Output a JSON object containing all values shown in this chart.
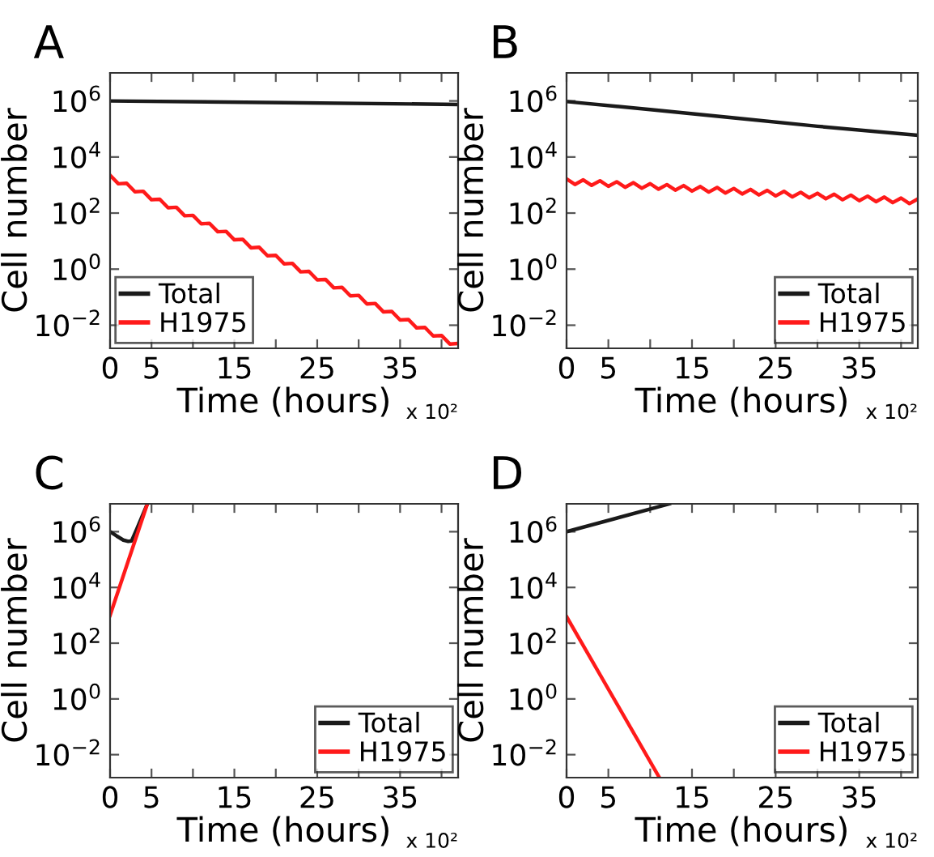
{
  "chart_data": [
    {
      "type": "line",
      "title": "A",
      "xlabel": "Time (hours)",
      "ylabel": "Cell number",
      "annotations": [
        "x 10²"
      ],
      "log": true,
      "grid": false,
      "legend": "bottom left",
      "xlim": [
        0,
        42
      ],
      "xticks": [
        0,
        5,
        {
          "value": 10,
          "label": null
        },
        15,
        {
          "value": 20,
          "label": null
        },
        25,
        {
          "value": 30,
          "label": null
        },
        35,
        {
          "value": 40,
          "label": null
        }
      ],
      "ylim": [
        0.0015,
        10000000
      ],
      "yticks": [
        {
          "value": 0.01,
          "label": "10$^{−2}$"
        },
        {
          "value": 1,
          "label": "10$^{0}$"
        },
        {
          "value": 100,
          "label": "10$^{2}$"
        },
        {
          "value": 10000,
          "label": "10$^{4}$"
        },
        {
          "value": 1000000,
          "label": "10$^{6}$"
        }
      ],
      "series": [
        {
          "name": "Total",
          "color": "#1a1a1a",
          "x": [
            0,
            21,
            42
          ],
          "values": [
            1000000,
            870000,
            750000
          ]
        },
        {
          "name": "H1975",
          "color": "#ff1a1a",
          "x": [
            0,
            1,
            2,
            3,
            4,
            5,
            6,
            7,
            8,
            9,
            10,
            11,
            12,
            13,
            14,
            15,
            16,
            17,
            18,
            19,
            20,
            21,
            22,
            23,
            24,
            25,
            26,
            27,
            28,
            29,
            30,
            31,
            32,
            33,
            34,
            35,
            36,
            37,
            38,
            39,
            40,
            41,
            42
          ],
          "values": [
            2240,
            1110,
            1160,
            577,
            600,
            299,
            311,
            155,
            161,
            80,
            83,
            41.5,
            43,
            21.5,
            22.3,
            11.1,
            11.6,
            5.77,
            6.0,
            2.99,
            3.1,
            1.55,
            1.61,
            0.8,
            0.83,
            0.414,
            0.431,
            0.215,
            0.223,
            0.111,
            0.116,
            0.0575,
            0.0598,
            0.0298,
            0.031,
            0.0154,
            0.016,
            0.008,
            0.0083,
            0.00414,
            0.0043,
            0.00214,
            0.00223
          ]
        }
      ]
    },
    {
      "type": "line",
      "title": "B",
      "xlabel": "Time (hours)",
      "ylabel": "Cell number",
      "annotations": [
        "x 10²"
      ],
      "log": true,
      "grid": false,
      "legend": "bottom right",
      "xlim": [
        0,
        42
      ],
      "xticks": [
        0,
        5,
        {
          "value": 10,
          "label": null
        },
        15,
        {
          "value": 20,
          "label": null
        },
        25,
        {
          "value": 30,
          "label": null
        },
        35,
        {
          "value": 40,
          "label": null
        }
      ],
      "ylim": [
        0.0015,
        10000000
      ],
      "yticks": [
        {
          "value": 0.01,
          "label": "10$^{−2}$"
        },
        {
          "value": 1,
          "label": "10$^{0}$"
        },
        {
          "value": 100,
          "label": "10$^{2}$"
        },
        {
          "value": 10000,
          "label": "10$^{4}$"
        },
        {
          "value": 1000000,
          "label": "10$^{6}$"
        }
      ],
      "series": [
        {
          "name": "Total",
          "color": "#1a1a1a",
          "x": [
            0,
            10,
            20,
            30,
            42
          ],
          "values": [
            950000,
            490000,
            250000,
            125000,
            60000
          ]
        },
        {
          "name": "H1975",
          "color": "#ff1a1a",
          "x": [
            0,
            1,
            2,
            3,
            4,
            5,
            6,
            7,
            8,
            9,
            10,
            11,
            12,
            13,
            14,
            15,
            16,
            17,
            18,
            19,
            20,
            21,
            22,
            23,
            24,
            25,
            26,
            27,
            28,
            29,
            30,
            31,
            32,
            33,
            34,
            35,
            36,
            37,
            38,
            39,
            40,
            41,
            42
          ],
          "values": [
            1660,
            1050,
            1530,
            975,
            1420,
            900,
            1310,
            832,
            1210,
            769,
            1120,
            711,
            1035,
            658,
            957,
            608,
            883,
            561,
            817,
            519,
            755,
            480,
            698,
            444,
            646,
            410,
            596,
            378,
            551,
            350,
            509,
            324,
            471,
            299,
            436,
            277,
            402,
            255,
            372,
            236,
            344,
            218,
            318
          ]
        }
      ]
    },
    {
      "type": "line",
      "title": "C",
      "xlabel": "Time (hours)",
      "ylabel": "Cell number",
      "annotations": [
        "x 10²"
      ],
      "log": true,
      "grid": false,
      "legend": "bottom right",
      "xlim": [
        0,
        42
      ],
      "xticks": [
        0,
        5,
        {
          "value": 10,
          "label": null
        },
        15,
        {
          "value": 20,
          "label": null
        },
        25,
        {
          "value": 30,
          "label": null
        },
        35,
        {
          "value": 40,
          "label": null
        }
      ],
      "ylim": [
        0.0015,
        10000000
      ],
      "yticks": [
        {
          "value": 0.01,
          "label": "10$^{−2}$"
        },
        {
          "value": 1,
          "label": "10$^{0}$"
        },
        {
          "value": 100,
          "label": "10$^{2}$"
        },
        {
          "value": 10000,
          "label": "10$^{4}$"
        },
        {
          "value": 1000000,
          "label": "10$^{6}$"
        }
      ],
      "series": [
        {
          "name": "Total",
          "color": "#1a1a1a",
          "x": [
            0,
            0.8,
            1.6,
            2.2,
            2.6,
            3.2,
            4.5
          ],
          "values": [
            1000000,
            700000,
            500000,
            450000,
            470000,
            1200000,
            10000000
          ]
        },
        {
          "name": "H1975",
          "color": "#ff1a1a",
          "x": [
            0,
            4.5
          ],
          "values": [
            1000,
            10000000
          ]
        }
      ]
    },
    {
      "type": "line",
      "title": "D",
      "xlabel": "Time (hours)",
      "ylabel": "Cell number",
      "annotations": [
        "x 10²"
      ],
      "log": true,
      "grid": false,
      "legend": "bottom right",
      "xlim": [
        0,
        42
      ],
      "xticks": [
        0,
        5,
        {
          "value": 10,
          "label": null
        },
        15,
        {
          "value": 20,
          "label": null
        },
        25,
        {
          "value": 30,
          "label": null
        },
        35,
        {
          "value": 40,
          "label": null
        }
      ],
      "ylim": [
        0.0015,
        10000000
      ],
      "yticks": [
        {
          "value": 0.01,
          "label": "10$^{−2}$"
        },
        {
          "value": 1,
          "label": "10$^{0}$"
        },
        {
          "value": 100,
          "label": "10$^{2}$"
        },
        {
          "value": 10000,
          "label": "10$^{4}$"
        },
        {
          "value": 1000000,
          "label": "10$^{6}$"
        }
      ],
      "series": [
        {
          "name": "Total",
          "color": "#1a1a1a",
          "x": [
            0,
            12.3
          ],
          "values": [
            1000000,
            10000000
          ]
        },
        {
          "name": "H1975",
          "color": "#ff1a1a",
          "x": [
            0,
            11.1
          ],
          "values": [
            900,
            0.0015
          ]
        }
      ]
    }
  ]
}
